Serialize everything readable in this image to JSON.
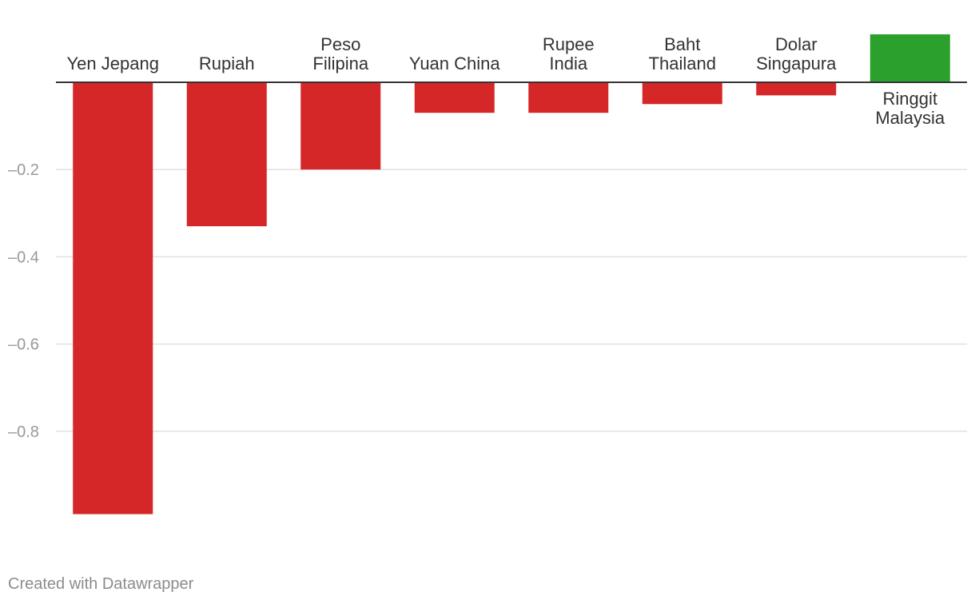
{
  "chart_data": {
    "type": "bar",
    "categories": [
      "Yen Jepang",
      "Rupiah",
      "Peso Filipina",
      "Yuan China",
      "Rupee India",
      "Baht Thailand",
      "Dolar Singapura",
      "Ringgit Malaysia"
    ],
    "label_lines": [
      [
        "Yen Jepang"
      ],
      [
        "Rupiah"
      ],
      [
        "Peso",
        "Filipina"
      ],
      [
        "Yuan China"
      ],
      [
        "Rupee",
        "India"
      ],
      [
        "Baht",
        "Thailand"
      ],
      [
        "Dolar",
        "Singapura"
      ],
      [
        "Ringgit",
        "Malaysia"
      ]
    ],
    "values": [
      -0.99,
      -0.33,
      -0.2,
      -0.07,
      -0.07,
      -0.05,
      -0.03,
      0.11
    ],
    "yticks": [
      -0.2,
      -0.4,
      -0.6,
      -0.8
    ],
    "ytick_labels": [
      "–0.2",
      "–0.4",
      "–0.6",
      "–0.8"
    ],
    "ylim": [
      -1.0,
      0.11
    ],
    "grid": true,
    "colors": {
      "negative": "#d62728",
      "positive": "#2ca02c",
      "grid": "#e1e1e1",
      "axis": "#333333"
    },
    "title": "",
    "xlabel": "",
    "ylabel": ""
  },
  "footer": {
    "credit": "Created with Datawrapper"
  }
}
